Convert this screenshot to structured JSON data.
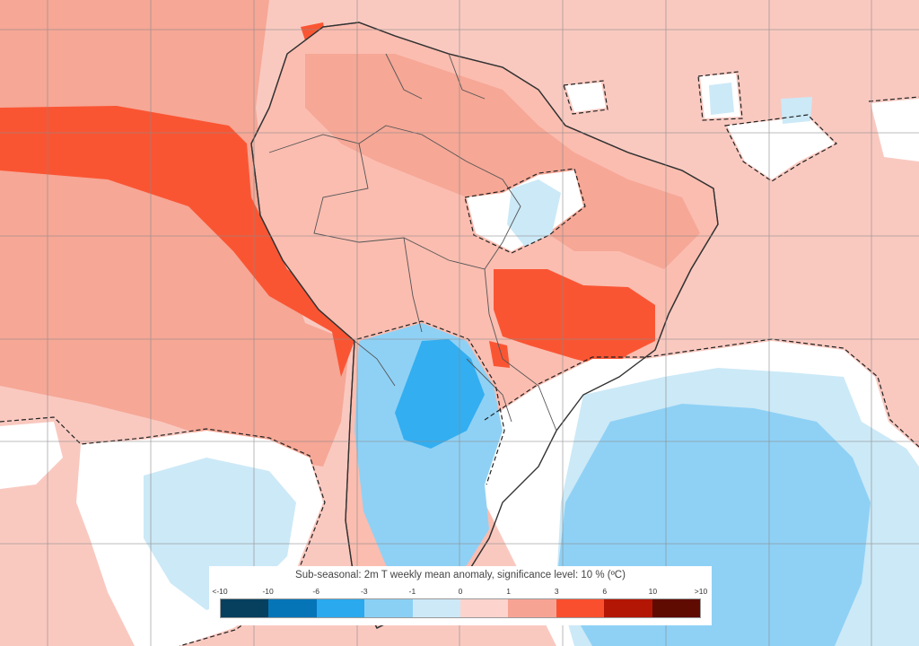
{
  "map": {
    "colors": {
      "ocean_background": "#f9c9c0",
      "moderate_warm": "#f6a796",
      "strong_warm": "#fa5533",
      "land_warm": "#fbbdb0",
      "cool_light": "#cce9f7",
      "cool_medium": "#8fd1f5",
      "cool_strong": "#33aef0",
      "not_significant": "#ffffff",
      "grid": "#8a8a8a",
      "borders": "#444444"
    }
  },
  "legend": {
    "title": "Sub-seasonal: 2m T weekly mean anomaly, significance level: 10 % (ºC)",
    "tick_labels": [
      "<-10",
      "-10",
      "-6",
      "-3",
      "-1",
      "0",
      "1",
      "3",
      "6",
      "10",
      ">10"
    ],
    "colors": [
      "#06405e",
      "#0575b8",
      "#2aa9ee",
      "#8ad0f4",
      "#cde9f8",
      "#fdd3cd",
      "#f7a394",
      "#f94f2e",
      "#b31604",
      "#5f0b02"
    ]
  }
}
